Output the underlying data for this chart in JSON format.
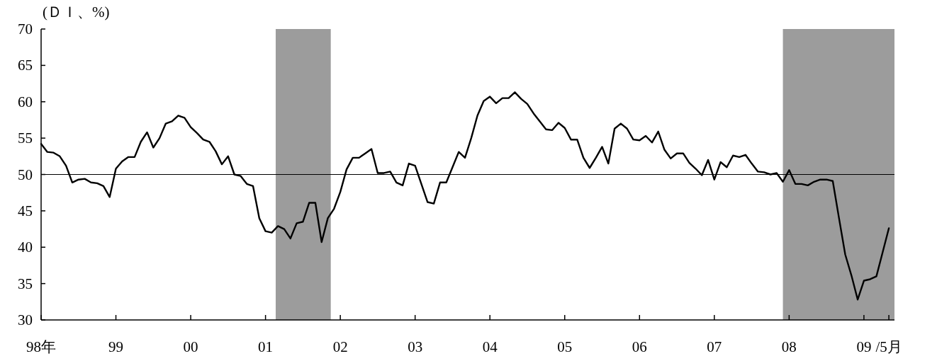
{
  "chart_data": {
    "type": "line",
    "ylabel": "(ＤＩ、%)",
    "x": [
      "1998-01",
      "1998-02",
      "1998-03",
      "1998-04",
      "1998-05",
      "1998-06",
      "1998-07",
      "1998-08",
      "1998-09",
      "1998-10",
      "1998-11",
      "1998-12",
      "1999-01",
      "1999-02",
      "1999-03",
      "1999-04",
      "1999-05",
      "1999-06",
      "1999-07",
      "1999-08",
      "1999-09",
      "1999-10",
      "1999-11",
      "1999-12",
      "2000-01",
      "2000-02",
      "2000-03",
      "2000-04",
      "2000-05",
      "2000-06",
      "2000-07",
      "2000-08",
      "2000-09",
      "2000-10",
      "2000-11",
      "2000-12",
      "2001-01",
      "2001-02",
      "2001-03",
      "2001-04",
      "2001-05",
      "2001-06",
      "2001-07",
      "2001-08",
      "2001-09",
      "2001-10",
      "2001-11",
      "2001-12",
      "2002-01",
      "2002-02",
      "2002-03",
      "2002-04",
      "2002-05",
      "2002-06",
      "2002-07",
      "2002-08",
      "2002-09",
      "2002-10",
      "2002-11",
      "2002-12",
      "2003-01",
      "2003-02",
      "2003-03",
      "2003-04",
      "2003-05",
      "2003-06",
      "2003-07",
      "2003-08",
      "2003-09",
      "2003-10",
      "2003-11",
      "2003-12",
      "2004-01",
      "2004-02",
      "2004-03",
      "2004-04",
      "2004-05",
      "2004-06",
      "2004-07",
      "2004-08",
      "2004-09",
      "2004-10",
      "2004-11",
      "2004-12",
      "2005-01",
      "2005-02",
      "2005-03",
      "2005-04",
      "2005-05",
      "2005-06",
      "2005-07",
      "2005-08",
      "2005-09",
      "2005-10",
      "2005-11",
      "2005-12",
      "2006-01",
      "2006-02",
      "2006-03",
      "2006-04",
      "2006-05",
      "2006-06",
      "2006-07",
      "2006-08",
      "2006-09",
      "2006-10",
      "2006-11",
      "2006-12",
      "2007-01",
      "2007-02",
      "2007-03",
      "2007-04",
      "2007-05",
      "2007-06",
      "2007-07",
      "2007-08",
      "2007-09",
      "2007-10",
      "2007-11",
      "2007-12",
      "2008-01",
      "2008-02",
      "2008-03",
      "2008-04",
      "2008-05",
      "2008-06",
      "2008-07",
      "2008-08",
      "2008-09",
      "2008-10",
      "2008-11",
      "2008-12",
      "2009-01",
      "2009-02",
      "2009-03",
      "2009-04",
      "2009-05"
    ],
    "series": [
      {
        "color": "#000000",
        "values": [
          54.2,
          53.1,
          53.0,
          52.5,
          51.2,
          48.9,
          49.3,
          49.4,
          48.9,
          48.8,
          48.4,
          46.9,
          50.8,
          51.8,
          52.4,
          52.4,
          54.5,
          55.8,
          53.7,
          55.0,
          57.0,
          57.3,
          58.1,
          57.8,
          56.5,
          55.7,
          54.8,
          54.5,
          53.2,
          51.4,
          52.5,
          50.0,
          49.8,
          48.7,
          48.4,
          44.0,
          42.2,
          42.0,
          42.9,
          42.5,
          41.2,
          43.3,
          43.5,
          46.1,
          46.1,
          40.7,
          44.0,
          45.3,
          47.6,
          50.7,
          52.3,
          52.3,
          52.9,
          53.5,
          50.2,
          50.2,
          50.4,
          48.9,
          48.5,
          51.5,
          51.2,
          48.7,
          46.2,
          46.0,
          48.9,
          48.9,
          51.0,
          53.1,
          52.3,
          55.0,
          58.1,
          60.1,
          60.7,
          59.8,
          60.5,
          60.5,
          61.3,
          60.4,
          59.7,
          58.4,
          57.3,
          56.2,
          56.1,
          57.1,
          56.4,
          54.8,
          54.8,
          52.3,
          50.9,
          52.3,
          53.8,
          51.5,
          56.3,
          57.0,
          56.3,
          54.8,
          54.7,
          55.3,
          54.4,
          55.9,
          53.4,
          52.2,
          52.9,
          52.9,
          51.6,
          50.8,
          49.9,
          52.0,
          49.3,
          51.7,
          51.0,
          52.6,
          52.4,
          52.7,
          51.5,
          50.4,
          50.3,
          50.0,
          50.2,
          49.0,
          50.6,
          48.7,
          48.7,
          48.5,
          49.0,
          49.3,
          49.3,
          49.1,
          44.0,
          39.0,
          36.1,
          32.8,
          35.4,
          35.6,
          36.0,
          39.3,
          42.6
        ]
      }
    ],
    "xlim": [
      "1998-01",
      "2009-05-28"
    ],
    "xticks": [
      {
        "value": "1998-01",
        "label": "98年"
      },
      {
        "value": "1999-01",
        "label": "99"
      },
      {
        "value": "2000-01",
        "label": "00"
      },
      {
        "value": "2001-01",
        "label": "01"
      },
      {
        "value": "2002-01",
        "label": "02"
      },
      {
        "value": "2003-01",
        "label": "03"
      },
      {
        "value": "2004-01",
        "label": "04"
      },
      {
        "value": "2005-01",
        "label": "05"
      },
      {
        "value": "2006-01",
        "label": "06"
      },
      {
        "value": "2007-01",
        "label": "07"
      },
      {
        "value": "2008-01",
        "label": "08"
      },
      {
        "value": "2009-01",
        "label": "09"
      },
      {
        "value": "2009-05",
        "label": "/5月"
      }
    ],
    "ylim": [
      30,
      70
    ],
    "yticks": [
      30,
      35,
      40,
      45,
      50,
      55,
      60,
      65,
      70
    ],
    "ref_lines": [
      {
        "axis": "y",
        "value": 50,
        "color": "#000000"
      }
    ],
    "bands": [
      {
        "axis": "x",
        "from": "2001-02-20",
        "to": "2001-11-15",
        "color": "#9c9c9c"
      },
      {
        "axis": "x",
        "from": "2007-12",
        "to": "2009-05-28",
        "color": "#9c9c9c"
      }
    ],
    "grid": false,
    "marker": "none",
    "line_style": "solid"
  }
}
